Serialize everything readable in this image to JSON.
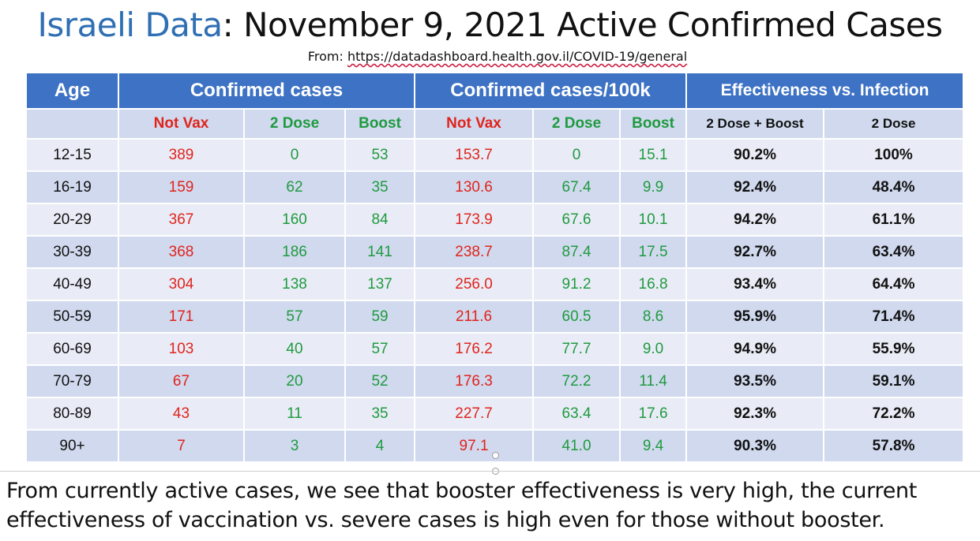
{
  "title": {
    "prefix": "Israeli Data",
    "rest": ": November 9, 2021 Active Confirmed Cases"
  },
  "source": {
    "label": "From: ",
    "url": "https://datadashboard.health.gov.il/COVID-19/general"
  },
  "table": {
    "group_headers": {
      "age": "Age",
      "confirmed": "Confirmed cases",
      "per100k": "Confirmed cases/100k",
      "effectiveness": "Effectiveness vs. Infection"
    },
    "sub_headers": {
      "not_vax": "Not Vax",
      "two_dose": "2 Dose",
      "boost": "Boost",
      "not_vax_100k": "Not Vax",
      "two_dose_100k": "2 Dose",
      "boost_100k": "Boost",
      "eff_2dose_boost": "2 Dose + Boost",
      "eff_2dose": "2 Dose"
    },
    "rows": [
      [
        "12-15",
        "389",
        "0",
        "53",
        "153.7",
        "0",
        "15.1",
        "90.2%",
        "100%"
      ],
      [
        "16-19",
        "159",
        "62",
        "35",
        "130.6",
        "67.4",
        "9.9",
        "92.4%",
        "48.4%"
      ],
      [
        "20-29",
        "367",
        "160",
        "84",
        "173.9",
        "67.6",
        "10.1",
        "94.2%",
        "61.1%"
      ],
      [
        "30-39",
        "368",
        "186",
        "141",
        "238.7",
        "87.4",
        "17.5",
        "92.7%",
        "63.4%"
      ],
      [
        "40-49",
        "304",
        "138",
        "137",
        "256.0",
        "91.2",
        "16.8",
        "93.4%",
        "64.4%"
      ],
      [
        "50-59",
        "171",
        "57",
        "59",
        "211.6",
        "60.5",
        "8.6",
        "95.9%",
        "71.4%"
      ],
      [
        "60-69",
        "103",
        "40",
        "57",
        "176.2",
        "77.7",
        "9.0",
        "94.9%",
        "55.9%"
      ],
      [
        "70-79",
        "67",
        "20",
        "52",
        "176.3",
        "72.2",
        "11.4",
        "93.5%",
        "59.1%"
      ],
      [
        "80-89",
        "43",
        "11",
        "35",
        "227.7",
        "63.4",
        "17.6",
        "92.3%",
        "72.2%"
      ],
      [
        "90+",
        "7",
        "3",
        "4",
        "97.1",
        "41.0",
        "9.4",
        "90.3%",
        "57.8%"
      ]
    ]
  },
  "caption": "From currently active cases, we see that booster effectiveness is very high, the current effectiveness of vaccination vs. severe cases is high even for those without booster.",
  "colors": {
    "header_blue": "#3d72c4",
    "row_light": "#e9ecf6",
    "row_dark": "#d0d9ee",
    "not_vax_red": "#e0241c",
    "vax_green": "#1f9a3f",
    "title_blue": "#2f6fb3"
  }
}
